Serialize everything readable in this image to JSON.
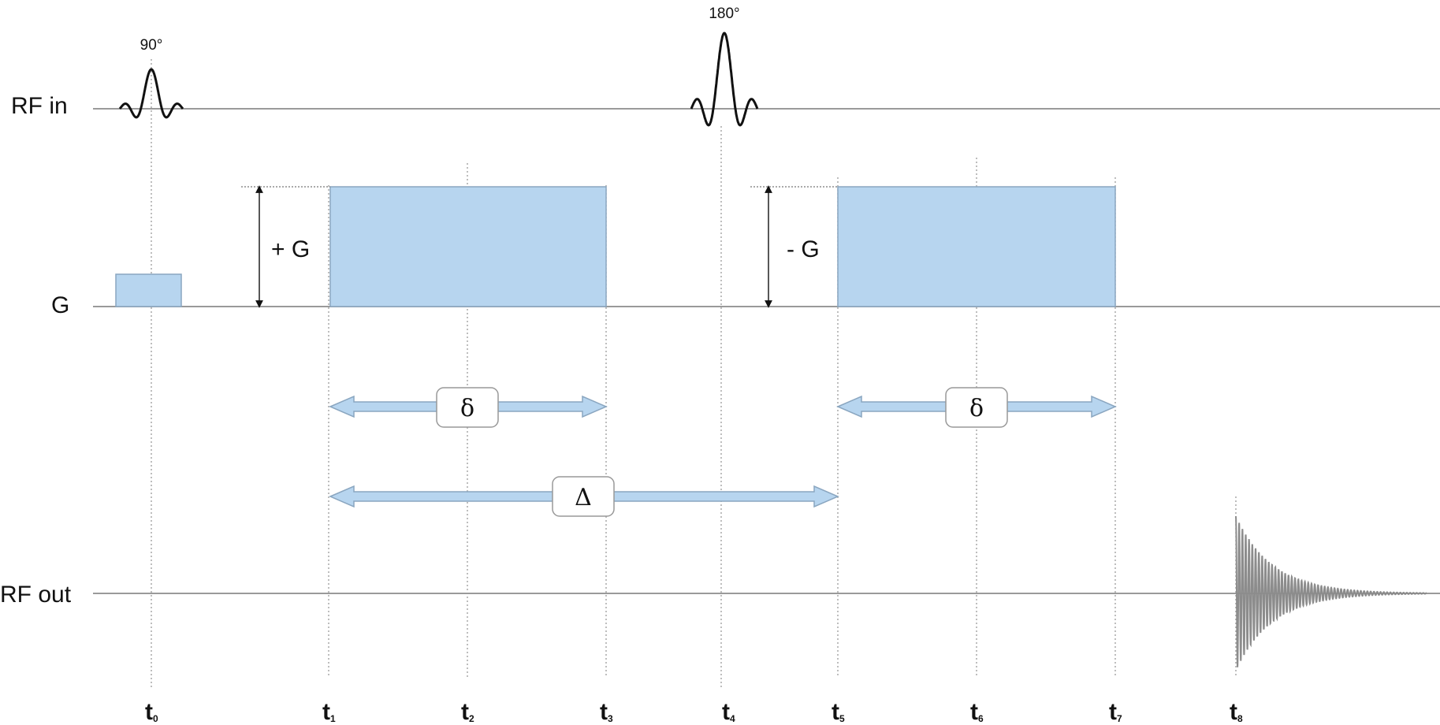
{
  "rows": {
    "rf_in": "RF in",
    "g": "G",
    "rf_out": "RF out"
  },
  "pulses": {
    "p90": "90°",
    "p180": "180°"
  },
  "gradients": {
    "plus": "+ G",
    "minus": "- G"
  },
  "intervals": {
    "delta_small": "δ",
    "delta_big": "Δ"
  },
  "time_points": {
    "symbol": "t",
    "subs": [
      "0",
      "1",
      "2",
      "3",
      "4",
      "5",
      "6",
      "7",
      "8"
    ]
  },
  "colors": {
    "gradient_fill": "#b7d5ef",
    "gradient_stroke": "#8aa6c0",
    "arrow_fill": "#b7d5ef",
    "baseline": "#9a9a9a",
    "guide": "#9a9a9a",
    "pulse": "#111111",
    "echo": "#8c8c8c"
  }
}
